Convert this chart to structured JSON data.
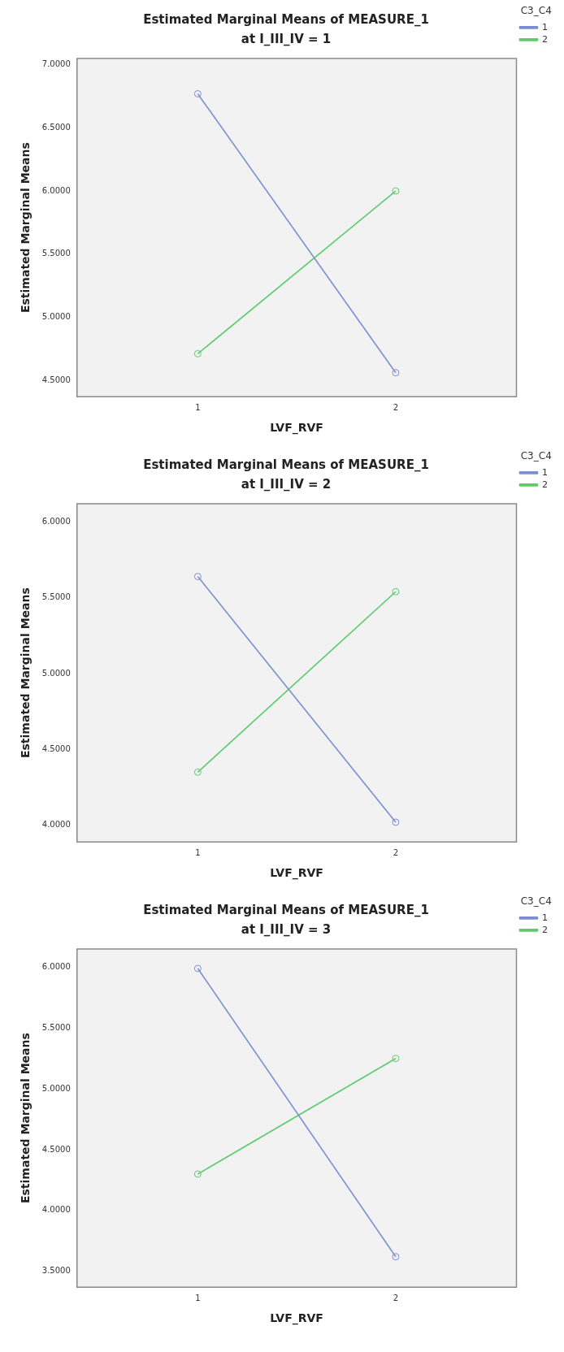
{
  "chart_data": [
    {
      "type": "line",
      "title": "Estimated Marginal Means of MEASURE_1",
      "subtitle": "at I_III_IV = 1",
      "xlabel": "LVF_RVF",
      "ylabel": "Estimated Marginal Means",
      "legend_title": "C3_C4",
      "legend": "right",
      "grid": false,
      "marker": "circle",
      "categories": [
        "1",
        "2"
      ],
      "ylim": [
        4.37,
        7.05
      ],
      "yticks": [
        {
          "value": 4.5,
          "label": "4.5000"
        },
        {
          "value": 5,
          "label": "5.0000"
        },
        {
          "value": 5.5,
          "label": "5.5000"
        },
        {
          "value": 6,
          "label": "6.0000"
        },
        {
          "value": 6.5,
          "label": "6.5000"
        },
        {
          "value": 7,
          "label": "7.0000"
        }
      ],
      "series": [
        {
          "name": "1",
          "color": "#7b8fd0",
          "values": [
            6.77,
            4.56
          ]
        },
        {
          "name": "2",
          "color": "#5ccb6e",
          "values": [
            4.71,
            6.0
          ]
        }
      ]
    },
    {
      "type": "line",
      "title": "Estimated Marginal Means of MEASURE_1",
      "subtitle": "at I_III_IV = 2",
      "xlabel": "LVF_RVF",
      "ylabel": "Estimated Marginal Means",
      "legend_title": "C3_C4",
      "legend": "right",
      "grid": false,
      "marker": "circle",
      "categories": [
        "1",
        "2"
      ],
      "ylim": [
        3.89,
        6.12
      ],
      "yticks": [
        {
          "value": 4,
          "label": "4.0000"
        },
        {
          "value": 4.5,
          "label": "4.5000"
        },
        {
          "value": 5,
          "label": "5.0000"
        },
        {
          "value": 5.5,
          "label": "5.5000"
        },
        {
          "value": 6,
          "label": "6.0000"
        }
      ],
      "series": [
        {
          "name": "1",
          "color": "#7b8fd0",
          "values": [
            5.64,
            4.02
          ]
        },
        {
          "name": "2",
          "color": "#5ccb6e",
          "values": [
            4.35,
            5.54
          ]
        }
      ]
    },
    {
      "type": "line",
      "title": "Estimated Marginal Means of MEASURE_1",
      "subtitle": "at I_III_IV = 3",
      "xlabel": "LVF_RVF",
      "ylabel": "Estimated Marginal Means",
      "legend_title": "C3_C4",
      "legend": "right",
      "grid": false,
      "marker": "circle",
      "categories": [
        "1",
        "2"
      ],
      "ylim": [
        3.37,
        6.15
      ],
      "yticks": [
        {
          "value": 3.5,
          "label": "3.5000"
        },
        {
          "value": 4,
          "label": "4.0000"
        },
        {
          "value": 4.5,
          "label": "4.5000"
        },
        {
          "value": 5,
          "label": "5.0000"
        },
        {
          "value": 5.5,
          "label": "5.5000"
        },
        {
          "value": 6,
          "label": "6.0000"
        }
      ],
      "series": [
        {
          "name": "1",
          "color": "#7b8fd0",
          "values": [
            5.99,
            3.62
          ]
        },
        {
          "name": "2",
          "color": "#5ccb6e",
          "values": [
            4.3,
            5.25
          ]
        }
      ]
    }
  ]
}
